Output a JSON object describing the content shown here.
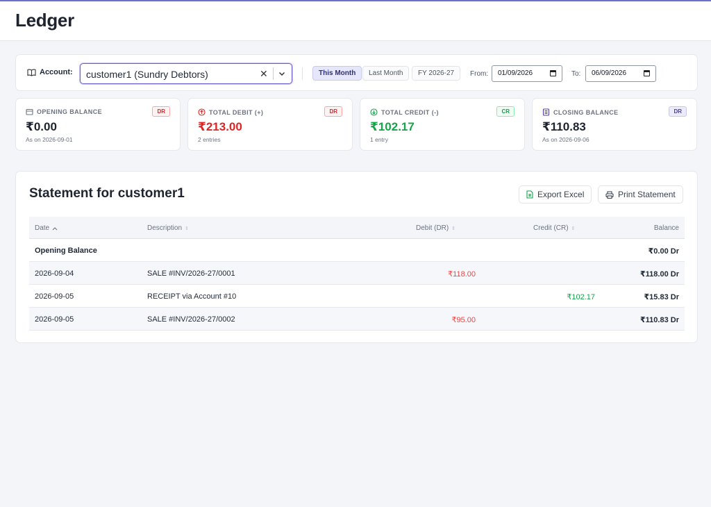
{
  "header": {
    "title": "Ledger"
  },
  "filter": {
    "account_label": "Account:",
    "account_value": "customer1 (Sundry Debtors)",
    "presets": [
      "This Month",
      "Last Month",
      "FY 2026-27"
    ],
    "from_label": "From:",
    "from_value": "01/09/2026",
    "to_label": "To:",
    "to_value": "06/09/2026"
  },
  "stats": {
    "opening": {
      "title": "OPENING BALANCE",
      "badge": "DR",
      "amount": "₹0.00",
      "sub": "As on 2026-09-01"
    },
    "debit": {
      "title": "TOTAL DEBIT (+)",
      "badge": "DR",
      "amount": "₹213.00",
      "sub": "2 entries"
    },
    "credit": {
      "title": "TOTAL CREDIT (-)",
      "badge": "CR",
      "amount": "₹102.17",
      "sub": "1 entry"
    },
    "closing": {
      "title": "CLOSING BALANCE",
      "badge": "DR",
      "amount": "₹110.83",
      "sub": "As on 2026-09-06"
    }
  },
  "statement": {
    "title": "Statement for customer1",
    "export_label": "Export Excel",
    "print_label": "Print Statement",
    "columns": {
      "date": "Date",
      "description": "Description",
      "debit": "Debit (DR)",
      "credit": "Credit (CR)",
      "balance": "Balance"
    },
    "opening_row": {
      "label": "Opening Balance",
      "balance": "₹0.00 Dr"
    },
    "rows": [
      {
        "date": "2026-09-04",
        "description": "SALE #INV/2026-27/0001",
        "debit": "₹118.00",
        "credit": "",
        "balance": "₹118.00 Dr"
      },
      {
        "date": "2026-09-05",
        "description": "RECEIPT via Account #10",
        "debit": "",
        "credit": "₹102.17",
        "balance": "₹15.83 Dr"
      },
      {
        "date": "2026-09-05",
        "description": "SALE #INV/2026-27/0002",
        "debit": "₹95.00",
        "credit": "",
        "balance": "₹110.83 Dr"
      }
    ]
  },
  "colors": {
    "accent": "#6b5fd0",
    "debit": "#dc2626",
    "credit": "#16a34a"
  }
}
